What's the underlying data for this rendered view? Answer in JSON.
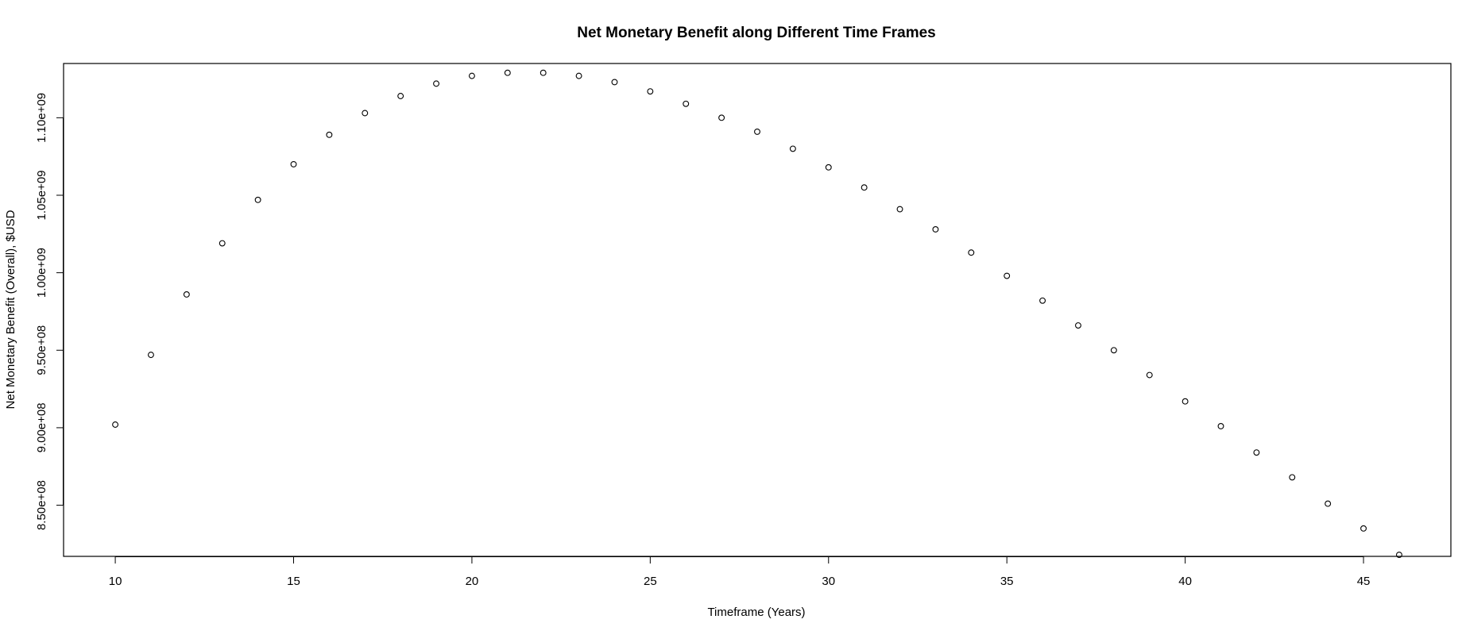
{
  "chart_data": {
    "type": "scatter",
    "title": "Net Monetary Benefit along Different Time Frames",
    "xlabel": "Timeframe (Years)",
    "ylabel": "Net Monetary Benefit (Overall), $USD",
    "xlim": [
      8.55,
      47.45
    ],
    "ylim": [
      817000000,
      1135000000
    ],
    "xticks": [
      10,
      15,
      20,
      25,
      30,
      35,
      40,
      45
    ],
    "xtick_labels": [
      "10",
      "15",
      "20",
      "25",
      "30",
      "35",
      "40",
      "45"
    ],
    "yticks": [
      850000000,
      900000000,
      950000000,
      1000000000,
      1050000000,
      1100000000
    ],
    "ytick_labels": [
      "8.50e+08",
      "9.00e+08",
      "9.50e+08",
      "1.00e+09",
      "1.05e+09",
      "1.10e+09"
    ],
    "marker": "open-circle",
    "grid": false,
    "legend": "none",
    "x": [
      10,
      11,
      12,
      13,
      14,
      15,
      16,
      17,
      18,
      19,
      20,
      21,
      22,
      23,
      24,
      25,
      26,
      27,
      28,
      29,
      30,
      31,
      32,
      33,
      34,
      35,
      36,
      37,
      38,
      39,
      40,
      41,
      42,
      43,
      44,
      45,
      46
    ],
    "y": [
      902000000,
      947000000,
      986000000,
      1019000000,
      1047000000,
      1070000000,
      1089000000,
      1103000000,
      1114000000,
      1122000000,
      1127000000,
      1129000000,
      1129000000,
      1127000000,
      1123000000,
      1117000000,
      1109000000,
      1100000000,
      1091000000,
      1080000000,
      1068000000,
      1055000000,
      1041000000,
      1028000000,
      1013000000,
      998000000,
      982000000,
      966000000,
      950000000,
      934000000,
      917000000,
      901000000,
      884000000,
      868000000,
      851000000,
      835000000,
      818000000
    ]
  }
}
